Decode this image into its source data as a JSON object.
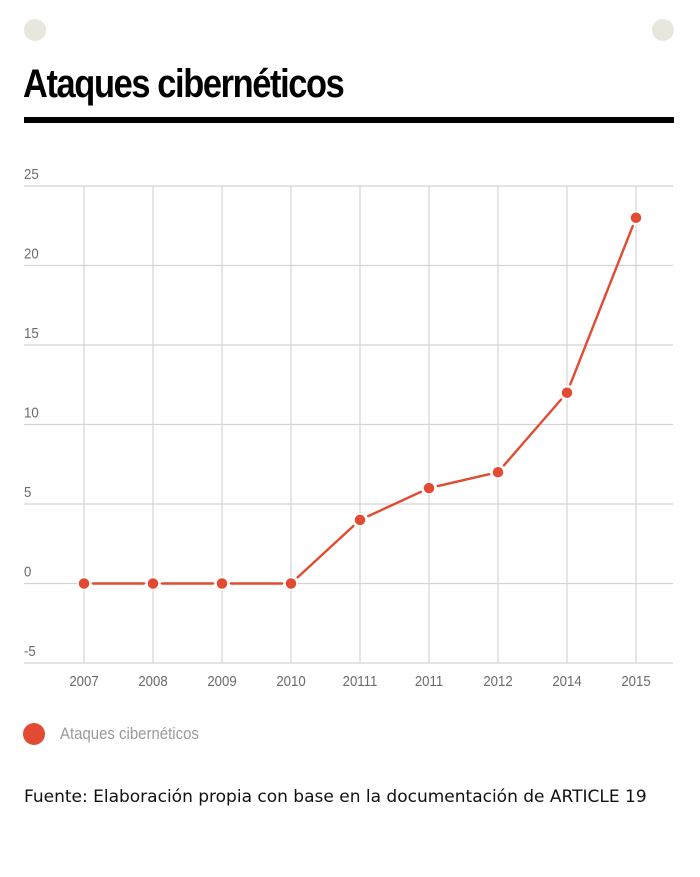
{
  "header": {
    "title": "Ataques cibernéticos"
  },
  "legend": {
    "label": "Ataques cibernéticos",
    "color": "#e24b31"
  },
  "source": {
    "text": "Fuente: Elaboración propia con base en la documentación de ARTICLE 19"
  },
  "colors": {
    "series": "#e24b31",
    "grid": "#d4d4d4",
    "decor_dot": "#e8e6dd"
  },
  "chart_data": {
    "type": "line",
    "title": "Ataques cibernéticos",
    "xlabel": "",
    "ylabel": "",
    "categories": [
      "2007",
      "2008",
      "2009",
      "2010",
      "20111",
      "2011",
      "2012",
      "2014",
      "2015"
    ],
    "series": [
      {
        "name": "Ataques cibernéticos",
        "values": [
          0,
          0,
          0,
          0,
          4,
          6,
          7,
          12,
          23
        ]
      }
    ],
    "ylim": [
      -5,
      25
    ],
    "yticks": [
      25,
      20,
      15,
      10,
      5,
      0,
      -5
    ],
    "grid": true,
    "legend_position": "bottom-left"
  }
}
